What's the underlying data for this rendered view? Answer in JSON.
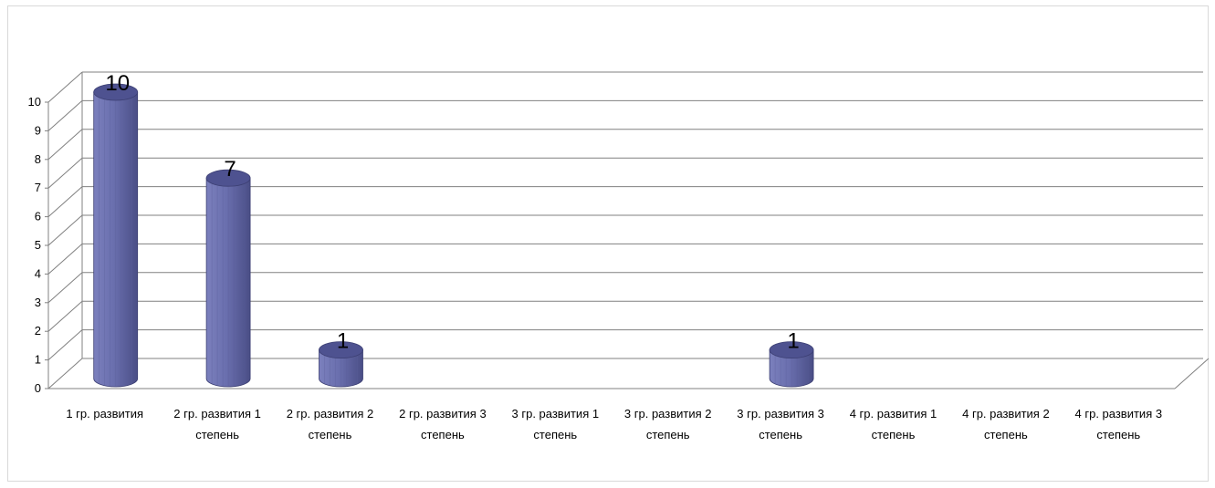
{
  "chart_data": {
    "type": "bar",
    "style": "3d-cylinder",
    "categories": [
      [
        "1 гр. развития"
      ],
      [
        "2 гр. развития 1",
        "степень"
      ],
      [
        "2 гр. развития 2",
        "степень"
      ],
      [
        "2 гр. развития 3",
        "степень"
      ],
      [
        "3 гр. развития 1",
        "степень"
      ],
      [
        "3 гр. развития 2",
        "степень"
      ],
      [
        "3 гр. развития 3",
        "степень"
      ],
      [
        "4 гр. развития 1",
        "степень"
      ],
      [
        "4 гр. развития 2",
        "степень"
      ],
      [
        "4 гр. развития 3",
        "степень"
      ]
    ],
    "values": [
      10,
      7,
      1,
      null,
      null,
      null,
      1,
      null,
      null,
      null
    ],
    "data_labels": [
      "10",
      "7",
      "1",
      "",
      "",
      "",
      "1",
      "",
      "",
      ""
    ],
    "ylim": [
      0,
      10
    ],
    "y_ticks": [
      "0",
      "1",
      "2",
      "3",
      "4",
      "5",
      "6",
      "7",
      "8",
      "9",
      "10"
    ],
    "grid": true,
    "legend": "none",
    "title": "",
    "xlabel": "",
    "ylabel": "",
    "colors": {
      "bar_front": "#6a6fae",
      "bar_top": "#4e5290",
      "bar_edge": "#3c3f73",
      "grid": "#808080"
    }
  }
}
